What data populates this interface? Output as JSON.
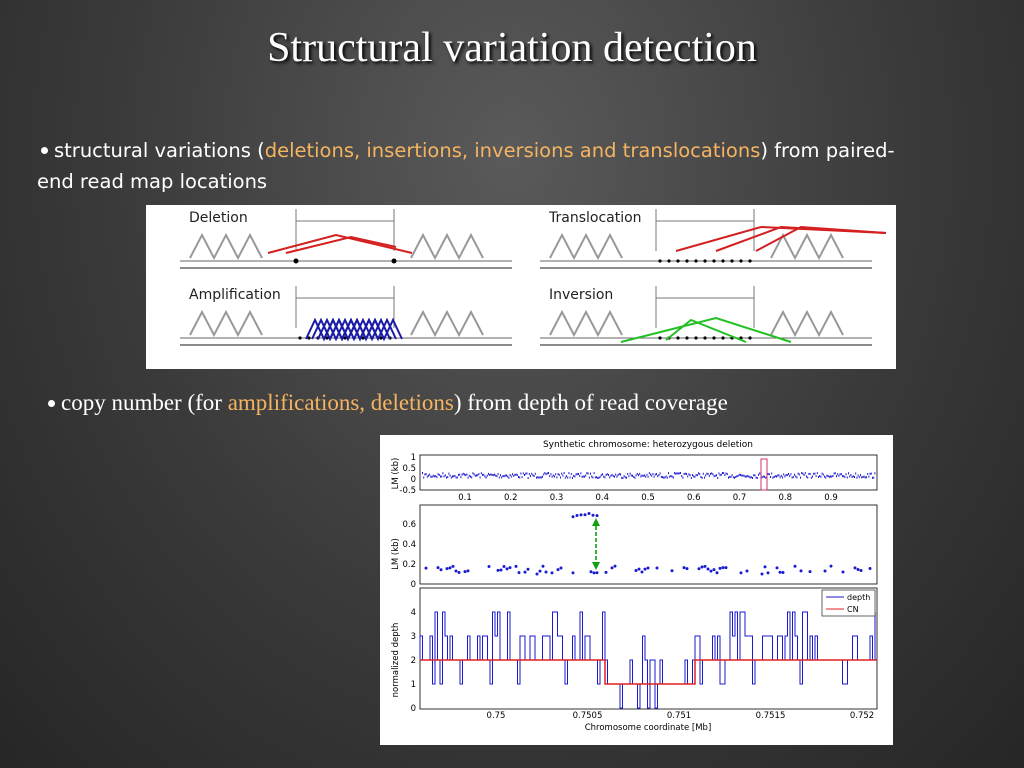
{
  "title": "Structural variation detection",
  "bullets": [
    {
      "before": "structural variations (",
      "highlight": "deletions, insertions, inversions and translocations",
      "after": ") from paired-end read map locations"
    },
    {
      "before": "copy number (for ",
      "highlight": "amplifications, deletions",
      "after": ") from depth of read coverage"
    }
  ],
  "diagram": {
    "panels": [
      "Deletion",
      "Translocation",
      "Amplification",
      "Inversion"
    ]
  },
  "figure": {
    "title": "Synthetic chromosome:  heterozygous deletion",
    "top": {
      "ylabel": "LM (kb)",
      "yticks": [
        "1",
        "0.5",
        "0",
        "-0.5"
      ],
      "xticks": [
        "0.1",
        "0.2",
        "0.3",
        "0.4",
        "0.5",
        "0.6",
        "0.7",
        "0.8",
        "0.9"
      ]
    },
    "middle": {
      "ylabel": "LM (kb)",
      "yticks": [
        "0.6",
        "0.4",
        "0.2",
        "0"
      ]
    },
    "bottom": {
      "ylabel": "normalized depth",
      "yticks": [
        "4",
        "3",
        "2",
        "1",
        "0"
      ],
      "xticks": [
        "0.75",
        "0.7505",
        "0.751",
        "0.7515",
        "0.752"
      ],
      "xlabel": "Chromosome coordinate [Mb]",
      "legend": [
        "depth",
        "CN"
      ]
    }
  }
}
